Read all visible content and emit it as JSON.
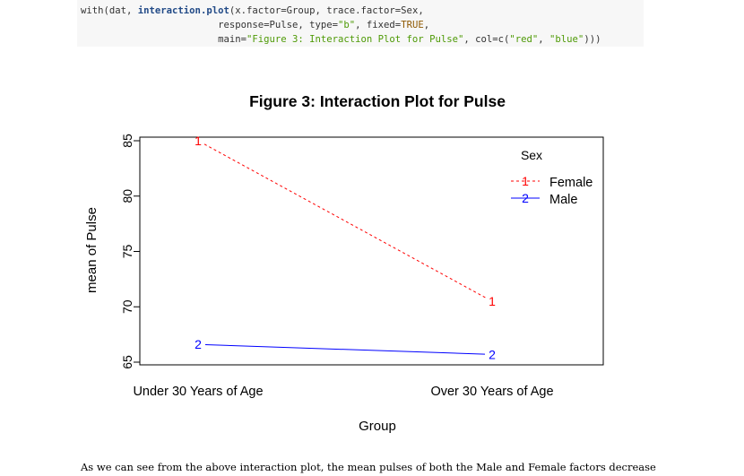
{
  "code": {
    "lines": [
      [
        {
          "t": "with(dat, ",
          "c": "plain"
        },
        {
          "t": "interaction.plot",
          "c": "fn"
        },
        {
          "t": "(x.factor=Group, trace.factor=Sex,",
          "c": "plain"
        }
      ],
      [
        {
          "t": "                        response=Pulse, type=",
          "c": "plain"
        },
        {
          "t": "\"b\"",
          "c": "str"
        },
        {
          "t": ", fixed=",
          "c": "plain"
        },
        {
          "t": "TRUE",
          "c": "kw"
        },
        {
          "t": ",",
          "c": "plain"
        }
      ],
      [
        {
          "t": "                        main=",
          "c": "plain"
        },
        {
          "t": "\"Figure 3: Interaction Plot for Pulse\"",
          "c": "str"
        },
        {
          "t": ", col=c(",
          "c": "plain"
        },
        {
          "t": "\"red\"",
          "c": "str"
        },
        {
          "t": ", ",
          "c": "plain"
        },
        {
          "t": "\"blue\"",
          "c": "str"
        },
        {
          "t": ")))",
          "c": "plain"
        }
      ]
    ]
  },
  "chart_data": {
    "type": "line",
    "title": "Figure 3: Interaction Plot for Pulse",
    "xlabel": "Group",
    "ylabel": "mean of  Pulse",
    "categories": [
      "Under 30 Years of Age",
      "Over 30 Years of Age"
    ],
    "ylim": [
      65,
      85
    ],
    "yticks": [
      65,
      70,
      75,
      80,
      85
    ],
    "grid": false,
    "legend": {
      "title": "Sex",
      "placement": "top-right"
    },
    "series": [
      {
        "name": "Female",
        "symbol": "1",
        "color": "#ff0000",
        "dash": true,
        "values": [
          85,
          70.5
        ]
      },
      {
        "name": "Male",
        "symbol": "2",
        "color": "#0000ff",
        "dash": false,
        "values": [
          66.6,
          65.7
        ]
      }
    ]
  },
  "paragraph": "As we can see from the above interaction plot, the mean pulses of both the Male and Female factors decrease"
}
